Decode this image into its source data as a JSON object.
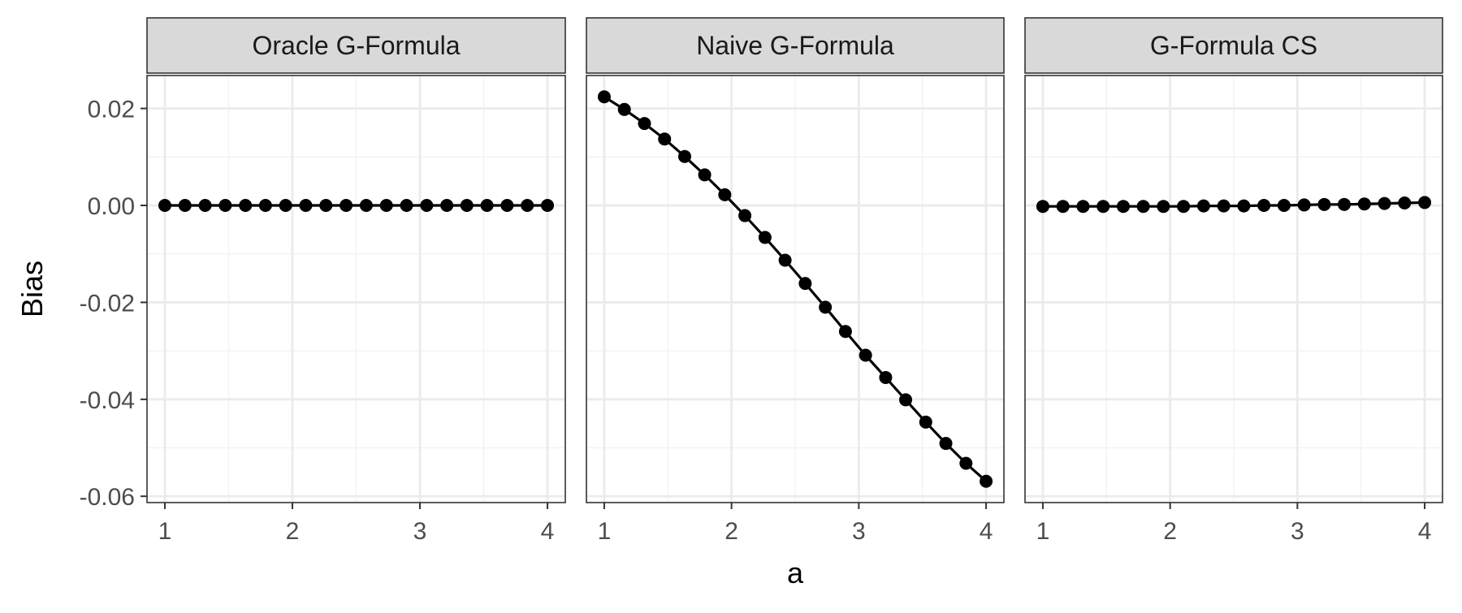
{
  "chart_data": {
    "type": "line",
    "facets": [
      "Oracle G-Formula",
      "Naive G-Formula",
      "G-Formula CS"
    ],
    "xlabel": "a",
    "ylabel": "Bias",
    "xlim": [
      0.86,
      4.14
    ],
    "ylim": [
      -0.0613,
      0.0268
    ],
    "x_ticks": [
      1,
      2,
      3,
      4
    ],
    "x_tick_labels": [
      "1",
      "2",
      "3",
      "4"
    ],
    "y_ticks": [
      0.02,
      0.0,
      -0.02,
      -0.04,
      -0.06
    ],
    "y_tick_labels": [
      "0.02",
      "0.00",
      "-0.02",
      "-0.04",
      "-0.06"
    ],
    "grid": true,
    "x": [
      1.0,
      1.158,
      1.316,
      1.474,
      1.632,
      1.789,
      1.947,
      2.105,
      2.263,
      2.421,
      2.579,
      2.737,
      2.895,
      3.053,
      3.211,
      3.368,
      3.526,
      3.684,
      3.842,
      4.0
    ],
    "series": [
      {
        "facet": "Oracle G-Formula",
        "values": [
          0.0,
          0.0,
          0.0,
          0.0,
          0.0,
          0.0,
          0.0,
          0.0,
          0.0,
          0.0,
          0.0,
          0.0,
          0.0,
          0.0,
          0.0,
          0.0,
          0.0,
          0.0,
          0.0,
          0.0
        ]
      },
      {
        "facet": "Naive G-Formula",
        "values": [
          0.0224,
          0.0198,
          0.0169,
          0.0137,
          0.0101,
          0.0063,
          0.0022,
          -0.0021,
          -0.0066,
          -0.0113,
          -0.0161,
          -0.021,
          -0.026,
          -0.0309,
          -0.0355,
          -0.0401,
          -0.0447,
          -0.0491,
          -0.0532,
          -0.0569
        ]
      },
      {
        "facet": "G-Formula CS",
        "values": [
          -0.0002,
          -0.0002,
          -0.0002,
          -0.0002,
          -0.0002,
          -0.0002,
          -0.0002,
          -0.0002,
          -0.0001,
          -0.0001,
          -0.0001,
          0.0,
          0.0,
          0.0001,
          0.0002,
          0.0002,
          0.0003,
          0.0004,
          0.0005,
          0.0006
        ]
      }
    ],
    "colors": {
      "strip_fill": "#d9d9d9",
      "panel_border": "#333333",
      "grid_major": "#ebebeb",
      "grid_minor": "#f2f2f2",
      "series": "#000000",
      "tick_label": "#4d4d4d",
      "axis_title": "#000000"
    }
  }
}
